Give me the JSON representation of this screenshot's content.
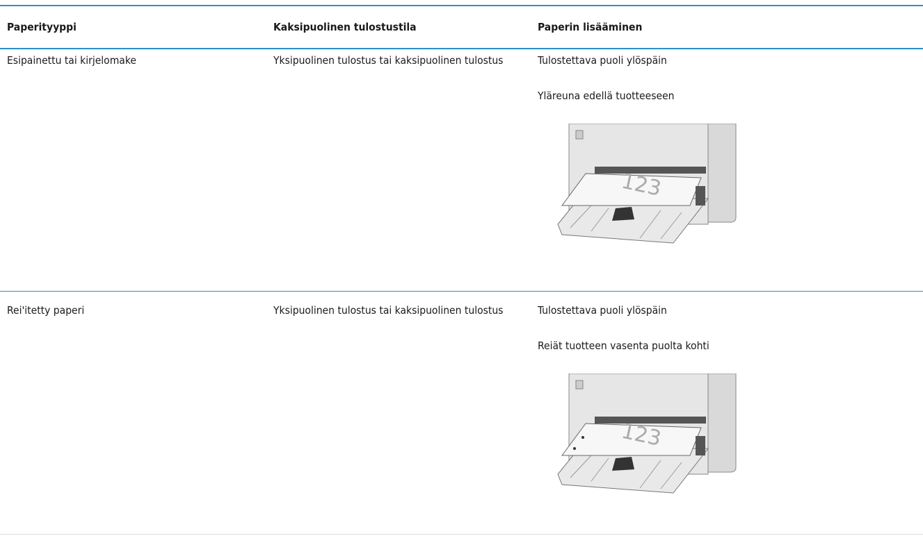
{
  "table": {
    "header": [
      "Paperityyppi",
      "Kaksipuolinen tulostustila",
      "Paperin lisääminen"
    ],
    "rows": [
      {
        "paper_type": "Esipainettu tai kirjelomake",
        "duplex_mode": "Yksipuolinen tulostus tai kaksipuolinen tulostus",
        "loading": [
          "Tulostettava puoli ylöspäin",
          "Yläreuna edellä tuotteeseen"
        ],
        "illustration_text": "123"
      },
      {
        "paper_type": "Rei'itetty paperi",
        "duplex_mode": "Yksipuolinen tulostus tai kaksipuolinen tulostus",
        "loading": [
          "Tulostettava puoli ylöspäin",
          "Reiät tuotteen vasenta puolta kohti"
        ],
        "illustration_text": "123"
      }
    ]
  }
}
